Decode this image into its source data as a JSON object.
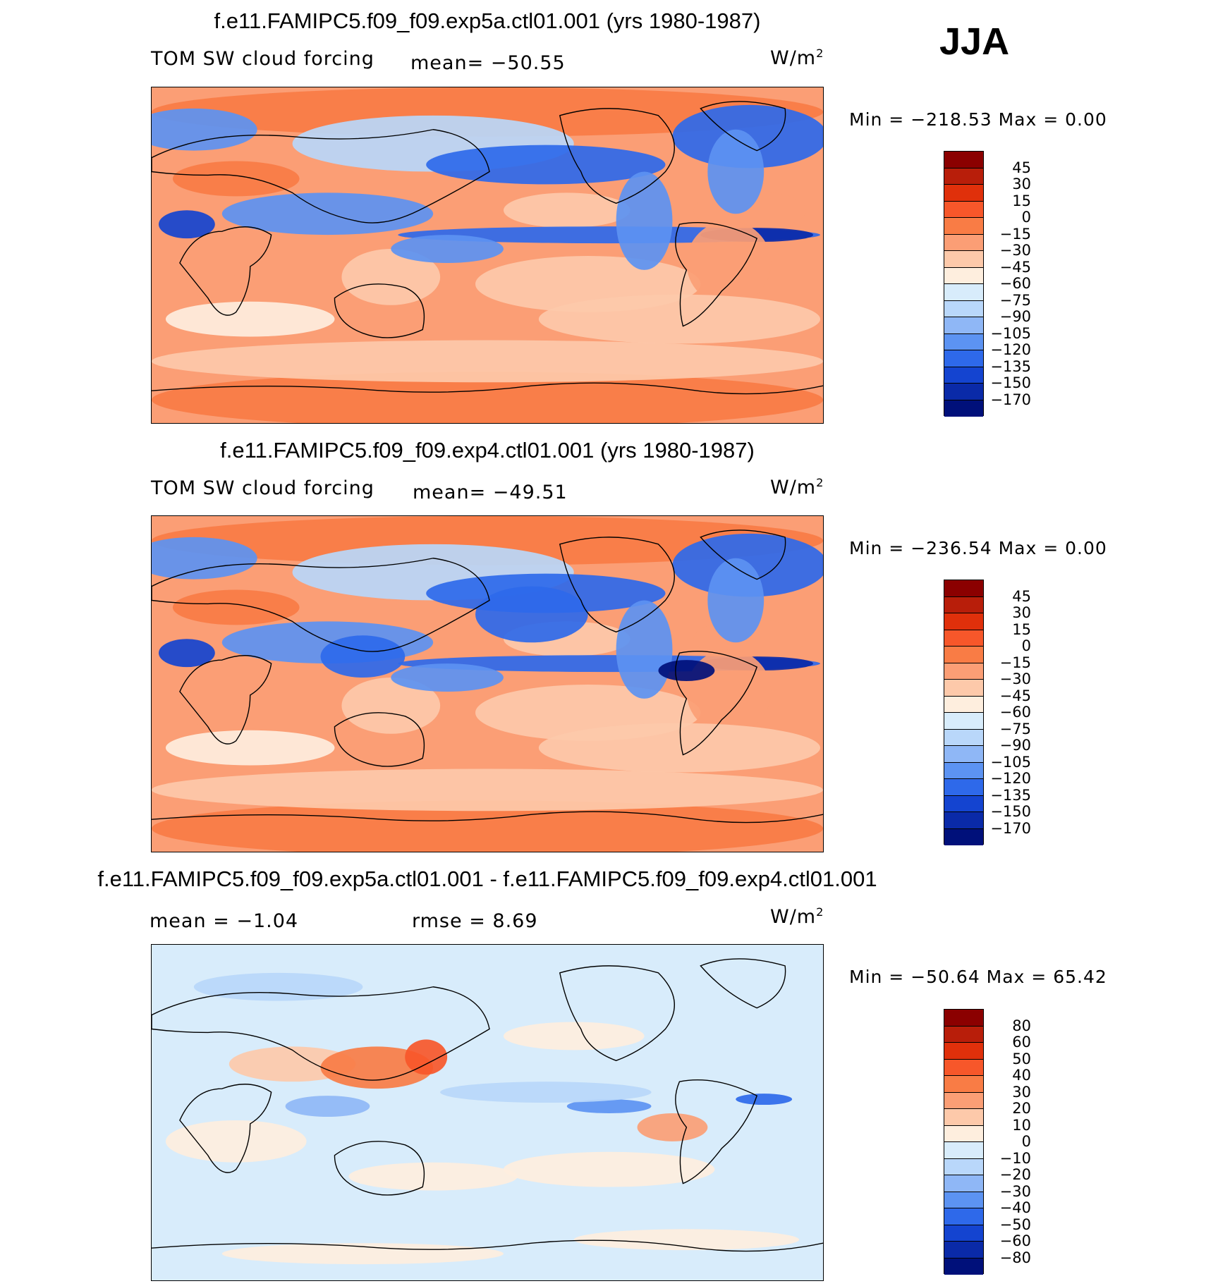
{
  "season": "JJA",
  "chart_data": [
    {
      "type": "heatmap",
      "title": "f.e11.FAMIPC5.f09_f09.exp5a.ctl01.001 (yrs 1980-1987)",
      "left_label": "TOM SW cloud forcing",
      "mean_text": "mean= −50.55",
      "units": "W/m",
      "units_sup": "2",
      "min_max": "Min = −218.53 Max =    0.00",
      "min": -218.53,
      "max": 0.0,
      "levels": [
        "45",
        "30",
        "15",
        "0",
        "−15",
        "−30",
        "−45",
        "−60",
        "−75",
        "−90",
        "−105",
        "−120",
        "−135",
        "−150",
        "−170"
      ],
      "colors": [
        "#8b0000",
        "#b81e0a",
        "#e0300b",
        "#f7572a",
        "#f97c45",
        "#fb9e75",
        "#fdc9aa",
        "#feeede",
        "#d8ecfb",
        "#b9d7fa",
        "#8fb7f6",
        "#5c93f2",
        "#2e69ea",
        "#1444d0",
        "#0a2aa8",
        "#00107a"
      ]
    },
    {
      "type": "heatmap",
      "title": "f.e11.FAMIPC5.f09_f09.exp4.ctl01.001 (yrs 1980-1987)",
      "left_label": "TOM SW cloud forcing",
      "mean_text": "mean= −49.51",
      "units": "W/m",
      "units_sup": "2",
      "min_max": "Min = −236.54 Max =    0.00",
      "min": -236.54,
      "max": 0.0,
      "levels": [
        "45",
        "30",
        "15",
        "0",
        "−15",
        "−30",
        "−45",
        "−60",
        "−75",
        "−90",
        "−105",
        "−120",
        "−135",
        "−150",
        "−170"
      ],
      "colors": [
        "#8b0000",
        "#b81e0a",
        "#e0300b",
        "#f7572a",
        "#f97c45",
        "#fb9e75",
        "#fdc9aa",
        "#feeede",
        "#d8ecfb",
        "#b9d7fa",
        "#8fb7f6",
        "#5c93f2",
        "#2e69ea",
        "#1444d0",
        "#0a2aa8",
        "#00107a"
      ]
    },
    {
      "type": "heatmap",
      "title": "f.e11.FAMIPC5.f09_f09.exp5a.ctl01.001 - f.e11.FAMIPC5.f09_f09.exp4.ctl01.001",
      "mean_text": "mean =   −1.04",
      "rmse_text": "rmse =     8.69",
      "units": "W/m",
      "units_sup": "2",
      "min_max": "Min = −50.64 Max =   65.42",
      "min": -50.64,
      "max": 65.42,
      "levels": [
        "80",
        "60",
        "50",
        "40",
        "30",
        "20",
        "10",
        "0",
        "−10",
        "−20",
        "−30",
        "−40",
        "−50",
        "−60",
        "−80"
      ],
      "colors": [
        "#8b0000",
        "#b81e0a",
        "#e0300b",
        "#f7572a",
        "#f97c45",
        "#fb9e75",
        "#fdc9aa",
        "#feeede",
        "#d8ecfb",
        "#b9d7fa",
        "#8fb7f6",
        "#5c93f2",
        "#2e69ea",
        "#1444d0",
        "#0a2aa8",
        "#00107a"
      ]
    }
  ]
}
